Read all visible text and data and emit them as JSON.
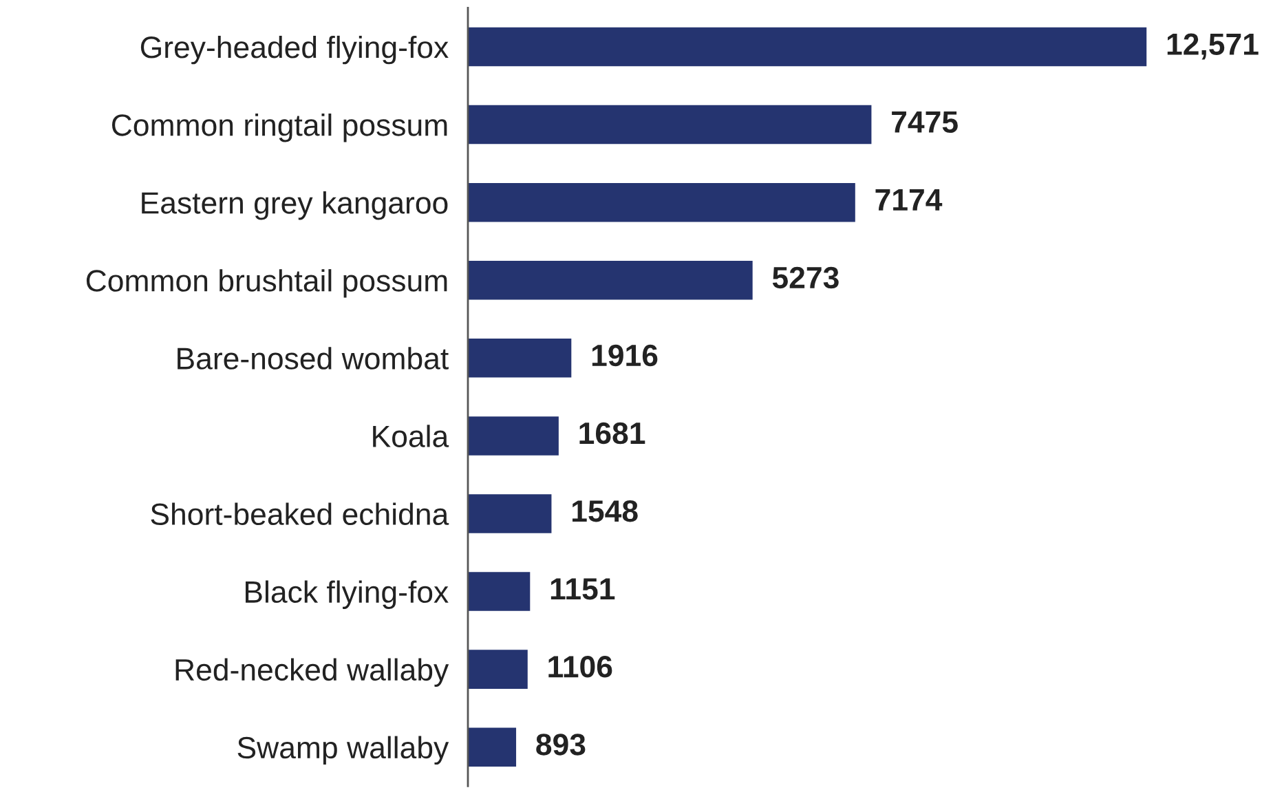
{
  "chart_data": {
    "type": "bar",
    "orientation": "horizontal",
    "categories": [
      "Grey-headed flying-fox",
      "Common ringtail possum",
      "Eastern grey kangaroo",
      "Common brushtail possum",
      "Bare-nosed wombat",
      "Koala",
      "Short-beaked echidna",
      "Black flying-fox",
      "Red-necked wallaby",
      "Swamp wallaby"
    ],
    "values": [
      12571,
      7475,
      7174,
      5273,
      1916,
      1681,
      1548,
      1151,
      1106,
      893
    ],
    "value_labels": [
      "12,571",
      "7475",
      "7174",
      "5273",
      "1916",
      "1681",
      "1548",
      "1151",
      "1106",
      "893"
    ],
    "color": "#253470",
    "grid": false,
    "legend": false
  }
}
